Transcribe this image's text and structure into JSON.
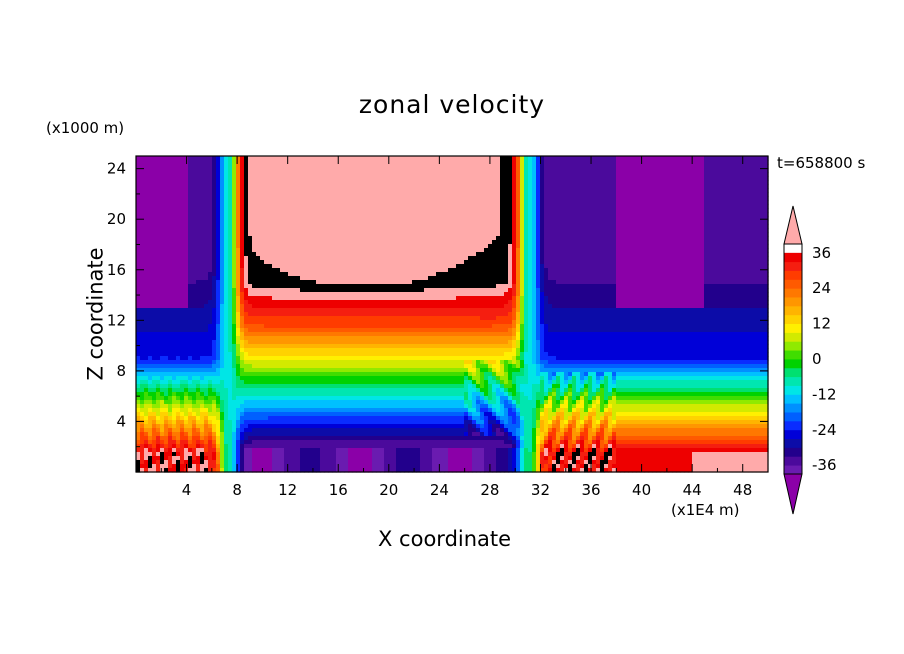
{
  "chart_data": {
    "type": "heatmap",
    "title": "zonal velocity",
    "xlabel": "X coordinate",
    "ylabel": "Z coordinate",
    "x_unit": "(x1E4 m)",
    "y_unit": "(x1000 m)",
    "time_label": "t=658800 s",
    "xlim": [
      0,
      50
    ],
    "ylim": [
      0,
      25
    ],
    "x_ticks": [
      4,
      8,
      12,
      16,
      20,
      24,
      28,
      32,
      36,
      40,
      44,
      48
    ],
    "x_tick_labels": [
      "4",
      "8",
      "12",
      "16",
      "20",
      "24",
      "28",
      "32",
      "36",
      "40",
      "44",
      "48"
    ],
    "y_ticks": [
      4,
      8,
      12,
      16,
      20,
      24
    ],
    "y_tick_labels": [
      "4",
      "8",
      "12",
      "16",
      "20",
      "24"
    ],
    "colorbar": {
      "levels": [
        -42,
        -39,
        -36,
        -33,
        -30,
        -27,
        -24,
        -21,
        -18,
        -15,
        -12,
        -9,
        -6,
        -3,
        0,
        3,
        6,
        9,
        12,
        15,
        18,
        21,
        24,
        27,
        30,
        33,
        36,
        39,
        42
      ],
      "tick_values": [
        36,
        24,
        12,
        0,
        -12,
        -24,
        -36
      ],
      "tick_labels": [
        "36",
        "24",
        "12",
        "0",
        "-12",
        "-24",
        "-36"
      ],
      "colors": [
        "#8b00a8",
        "#6a1bb0",
        "#4b0a9c",
        "#22008c",
        "#0c0ca8",
        "#0000d8",
        "#0a2cff",
        "#0060ff",
        "#0090ff",
        "#00c0ff",
        "#00e6e6",
        "#00e6b0",
        "#00e070",
        "#00d200",
        "#40dd00",
        "#90ea00",
        "#d2ea00",
        "#fff000",
        "#ffd200",
        "#ffb400",
        "#ff9600",
        "#ff7800",
        "#ff5a00",
        "#ff3c00",
        "#f51e10",
        "#ee0000",
        "#ffaaaa"
      ]
    },
    "field_description": "u(x,z): strong positive core (about +40) for x 8-30 above z 12; negative bands below; negative (about -30 to -40) outside x 7 and x 31 at upper levels; positive near-surface on flanks"
  }
}
